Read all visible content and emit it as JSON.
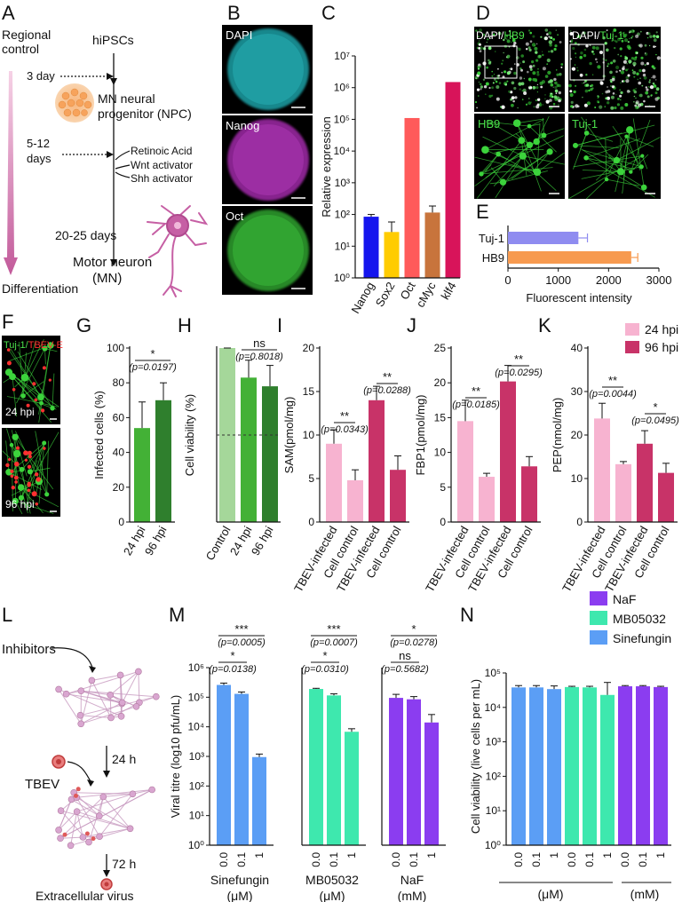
{
  "panels": {
    "A": {
      "letter": "A",
      "regional_control": [
        "Regional",
        "control"
      ],
      "differentiation": "Differentiation",
      "hipscs": "hiPSCs",
      "day3": "3 day",
      "npc": [
        "MN neural",
        "progenitor (NPC)"
      ],
      "days_5_12": [
        "5-12",
        "days"
      ],
      "factors": [
        "Retinoic Acid",
        "Wnt activator",
        "Shh activator"
      ],
      "days_20_25": "20-25 days",
      "mn": [
        "Motor neuron",
        "(MN)"
      ]
    },
    "B": {
      "letter": "B",
      "labels": [
        "DAPI",
        "Nanog",
        "Oct"
      ],
      "colors": [
        "#1fa0a6",
        "#a02aa8",
        "#2da12d"
      ]
    },
    "C": {
      "letter": "C"
    },
    "D": {
      "letter": "D",
      "top_left": [
        "DAPI/",
        "HB9"
      ],
      "top_right": [
        "DAPI/",
        "Tuj-1"
      ],
      "bottom_left": "HB9",
      "bottom_right": "Tuj-1"
    },
    "E": {
      "letter": "E"
    },
    "F": {
      "letter": "F",
      "title": [
        "Tuj-1/",
        "TBEV-E"
      ],
      "time_top": "24 hpi",
      "time_bottom": "96 hpi"
    },
    "G": {
      "letter": "G",
      "sig": "*",
      "p": "(p=0.0197)"
    },
    "H": {
      "letter": "H",
      "sig": "ns",
      "p": "(p=0.8018)"
    },
    "I": {
      "letter": "I",
      "sig1": "**",
      "p1": "(p=0.0343)",
      "sig2": "**",
      "p2": "(p=0.0288)"
    },
    "J": {
      "letter": "J",
      "sig1": "**",
      "p1": "(p=0.0185)",
      "sig2": "**",
      "p2": "(p=0.0295)"
    },
    "K": {
      "letter": "K",
      "sig1": "**",
      "p1": "(p=0.0044)",
      "sig2": "*",
      "p2": "(p=0.0495)",
      "legend": [
        "24 hpi",
        "96 hpi"
      ]
    },
    "L": {
      "letter": "L",
      "inhibitors": "Inhibitors",
      "tbev": "TBEV",
      "t24": "24 h",
      "t72": "72 h",
      "extracellular": "Extracellular virus"
    },
    "M": {
      "letter": "M",
      "sin_sig1": "***",
      "sin_p1": "(p=0.0005)",
      "sin_sig2": "*",
      "sin_p2": "(p=0.0138)",
      "mb_sig1": "***",
      "mb_p1": "(p=0.0007)",
      "mb_sig2": "*",
      "mb_p2": "(p=0.0310)",
      "naf_sig1": "*",
      "naf_p1": "(p=0.0278)",
      "naf_sig2": "ns",
      "naf_p2": "(p=0.5682)",
      "groups": [
        [
          "Sinefungin",
          "(μM)"
        ],
        [
          "MB05032",
          "(μM)"
        ],
        [
          "NaF",
          "(mM)"
        ]
      ]
    },
    "N": {
      "letter": "N",
      "legend": [
        "NaF",
        "MB05032",
        "Sinefungin"
      ],
      "group_um": "(μM)",
      "group_mm": "(mM)"
    }
  },
  "chart_data": [
    {
      "id": "C",
      "type": "bar",
      "ylabel": "Relative expression",
      "scale": "log",
      "ylim": [
        1,
        10000000
      ],
      "yticks": [
        "10⁰",
        "10¹",
        "10²",
        "10³",
        "10⁴",
        "10⁵",
        "10⁶",
        "10⁷"
      ],
      "categories": [
        "Nanog",
        "Sox2",
        "Oct",
        "cMyc",
        "klf4"
      ],
      "values": [
        85,
        28,
        110000,
        115,
        1500000
      ],
      "errors": [
        15,
        30,
        0,
        70,
        0
      ],
      "colors": [
        "#1515ee",
        "#ffcc00",
        "#ff5a5a",
        "#c8743c",
        "#d8145a"
      ]
    },
    {
      "id": "E",
      "type": "bar",
      "orientation": "horizontal",
      "xlabel": "Fluorescent intensity",
      "xlim": [
        0,
        3000
      ],
      "xticks": [
        "0",
        "1000",
        "2000",
        "3000"
      ],
      "categories": [
        "Tuj-1",
        "HB9"
      ],
      "values": [
        1400,
        2450
      ],
      "errors": [
        180,
        130
      ],
      "colors": [
        "#8f8cf0",
        "#f79a4f"
      ]
    },
    {
      "id": "G",
      "type": "bar",
      "ylabel": "Infected cells (%)",
      "ylim": [
        0,
        100
      ],
      "yticks": [
        "0",
        "20",
        "40",
        "60",
        "80",
        "100"
      ],
      "categories": [
        "24 hpi",
        "96 hpi"
      ],
      "values": [
        54,
        70
      ],
      "errors": [
        15,
        10
      ],
      "colors": [
        "#43b136",
        "#2f7f2d"
      ]
    },
    {
      "id": "H",
      "type": "bar",
      "ylabel": "Cell viability (%)",
      "ylim": [
        0,
        100
      ],
      "categories": [
        "Control",
        "24 hpi",
        "96 hpi"
      ],
      "values": [
        100,
        83,
        78
      ],
      "errors": [
        0,
        10,
        12
      ],
      "colors": [
        "#a5d79a",
        "#43b136",
        "#2f7f2d"
      ],
      "reference_line": 50
    },
    {
      "id": "I",
      "type": "bar",
      "ylabel": "SAM(pmol/mg)",
      "ylim": [
        0,
        20
      ],
      "yticks": [
        "0",
        "5",
        "10",
        "15",
        "20"
      ],
      "categories": [
        "TBEV-infected",
        "Cell control",
        "TBEV-infected",
        "Cell control"
      ],
      "values": [
        9,
        4.8,
        14,
        6
      ],
      "errors": [
        1.6,
        1.2,
        1.6,
        1.6
      ],
      "colors": [
        "#f7b3d0",
        "#f7b3d0",
        "#c83368",
        "#c83368"
      ]
    },
    {
      "id": "J",
      "type": "bar",
      "ylabel": "FBP1(pmol/mg)",
      "ylim": [
        0,
        25
      ],
      "yticks": [
        "0",
        "5",
        "10",
        "15",
        "20",
        "25"
      ],
      "categories": [
        "TBEV-infected",
        "Cell control",
        "TBEV-infected",
        "Cell control"
      ],
      "values": [
        14.5,
        6.5,
        20.2,
        8
      ],
      "errors": [
        3,
        0.5,
        2.3,
        1.4
      ],
      "colors": [
        "#f7b3d0",
        "#f7b3d0",
        "#c83368",
        "#c83368"
      ]
    },
    {
      "id": "K",
      "type": "bar",
      "ylabel": "PEP(nmol/mg)",
      "ylim": [
        0,
        40
      ],
      "yticks": [
        "0",
        "10",
        "20",
        "30",
        "40"
      ],
      "categories": [
        "TBEV-infected",
        "Cell control",
        "TBEV-infected",
        "Cell control"
      ],
      "values": [
        23.8,
        13.3,
        18,
        11.3
      ],
      "errors": [
        3.5,
        0.6,
        3,
        2.2
      ],
      "colors": [
        "#f7b3d0",
        "#f7b3d0",
        "#c83368",
        "#c83368"
      ]
    },
    {
      "id": "M",
      "type": "bar",
      "ylabel": "Viral titre (log10 pfu/mL)",
      "scale": "log",
      "ylim": [
        1,
        1000000
      ],
      "yticks": [
        "10⁰",
        "10¹",
        "10²",
        "10³",
        "10⁴",
        "10⁵",
        "10⁶"
      ],
      "groups": [
        {
          "categories": [
            "0.0",
            "0.1",
            "1"
          ],
          "values": [
            260000,
            130000,
            950
          ],
          "errors": [
            40000,
            20000,
            250
          ],
          "color": "#5b9ef5"
        },
        {
          "categories": [
            "0.0",
            "0.1",
            "1"
          ],
          "values": [
            190000,
            115000,
            6800
          ],
          "errors": [
            10000,
            15000,
            1800
          ],
          "color": "#3ee8ae"
        },
        {
          "categories": [
            "0.0",
            "0.1",
            "1"
          ],
          "values": [
            95000,
            85000,
            14000
          ],
          "errors": [
            30000,
            20000,
            12000
          ],
          "color": "#8b3df0"
        }
      ]
    },
    {
      "id": "N",
      "type": "bar",
      "ylabel": "Cell viability (live cells per mL)",
      "scale": "log",
      "ylim": [
        1,
        100000
      ],
      "yticks": [
        "10⁰",
        "10¹",
        "10²",
        "10³",
        "10⁴",
        "10⁵"
      ],
      "categories": [
        "0.0",
        "0.1",
        "1",
        "0.0",
        "0.1",
        "1",
        "0.0",
        "0.1",
        "1"
      ],
      "values": [
        38000,
        38000,
        34000,
        39000,
        38000,
        23000,
        41000,
        41000,
        39000
      ],
      "errors": [
        5000,
        5000,
        8000,
        2000,
        3000,
        30000,
        2000,
        2000,
        2000
      ],
      "colors": [
        "#5b9ef5",
        "#5b9ef5",
        "#5b9ef5",
        "#3ee8ae",
        "#3ee8ae",
        "#3ee8ae",
        "#8b3df0",
        "#8b3df0",
        "#8b3df0"
      ]
    }
  ]
}
